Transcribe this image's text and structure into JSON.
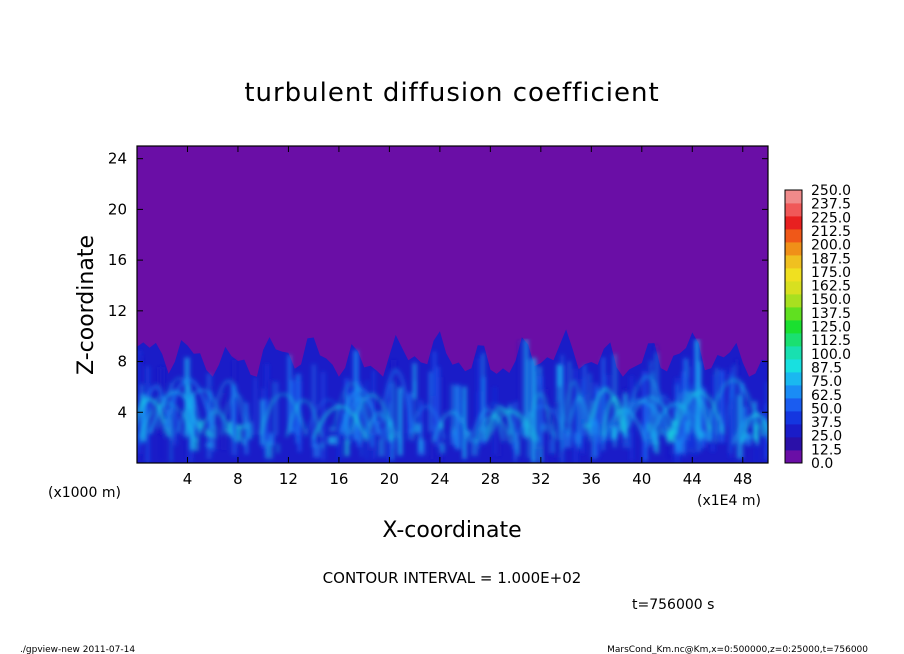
{
  "chart_data": {
    "type": "heatmap",
    "title": "turbulent diffusion coefficient",
    "xlabel": "X-coordinate",
    "ylabel": "Z-coordinate",
    "x_unit_label": "(x1E4 m)",
    "y_unit_label": "(x1000 m)",
    "xlim": [
      0,
      50
    ],
    "ylim": [
      0,
      25
    ],
    "x_ticks": [
      "4",
      "8",
      "12",
      "16",
      "20",
      "24",
      "28",
      "32",
      "36",
      "40",
      "44",
      "48"
    ],
    "x_tick_values": [
      4,
      8,
      12,
      16,
      20,
      24,
      28,
      32,
      36,
      40,
      44,
      48
    ],
    "y_ticks": [
      "4",
      "8",
      "12",
      "16",
      "20",
      "24"
    ],
    "y_tick_values": [
      4,
      8,
      12,
      16,
      20,
      24
    ],
    "colorbar": {
      "labels": [
        "0.0",
        "12.5",
        "25.0",
        "37.5",
        "50.0",
        "62.5",
        "75.0",
        "87.5",
        "100.0",
        "112.5",
        "125.0",
        "137.5",
        "150.0",
        "162.5",
        "175.0",
        "187.5",
        "200.0",
        "212.5",
        "225.0",
        "237.5",
        "250.0"
      ],
      "colors": [
        "#6a0ea6",
        "#2a10a8",
        "#1a1cc8",
        "#1436e0",
        "#1a5cf0",
        "#1a8cf5",
        "#1ab8f0",
        "#18e0e0",
        "#18e0b0",
        "#1ae070",
        "#1ae030",
        "#60e020",
        "#a8e020",
        "#d8e020",
        "#f0e020",
        "#f0c020",
        "#f09018",
        "#f05818",
        "#e82020",
        "#f05858",
        "#f08a8a"
      ]
    },
    "background_value_color": "#6a0ea6",
    "contour_interval_text": "CONTOUR INTERVAL = 1.000E+02",
    "time_text": "t=756000 s"
  },
  "footer": {
    "left": "./gpview-new  2011-07-14",
    "right": "MarsCond_Km.nc@Km,x=0:500000,z=0:25000,t=756000"
  }
}
